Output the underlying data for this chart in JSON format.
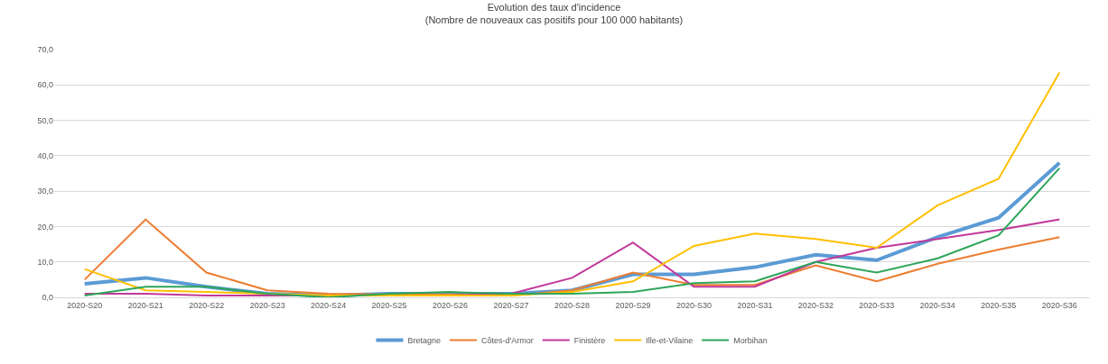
{
  "chart_data": {
    "type": "line",
    "title": "Evolution des taux d'incidence\n(Nombre de nouveaux cas positifs pour 100 000 habitants)",
    "categories": [
      "2020-S20",
      "2020-S21",
      "2020-S22",
      "2020-S23",
      "2020-S24",
      "2020-S25",
      "2020-S26",
      "2020-S27",
      "2020-S28",
      "2020-S29",
      "2020-S30",
      "2020-S31",
      "2020-S32",
      "2020-S33",
      "2020-S34",
      "2020-S35",
      "2020-S36"
    ],
    "series": [
      {
        "name": "Bretagne",
        "color": "#5b9bd5",
        "values": [
          3.8,
          5.5,
          3,
          1,
          0.5,
          1,
          1,
          1,
          2,
          6.5,
          6.5,
          8.5,
          12,
          10.5,
          17,
          22.5,
          38
        ]
      },
      {
        "name": "Côtes-d'Armor",
        "color": "#ed7d31",
        "values": [
          5,
          22,
          7,
          2,
          1,
          0.8,
          0.8,
          0.5,
          2,
          7,
          3.5,
          3.5,
          9,
          4.5,
          9.5,
          13.5,
          17
        ]
      },
      {
        "name": "Finistère",
        "color": "#c2389a",
        "values": [
          1,
          1,
          0.5,
          0.5,
          0.5,
          0.5,
          0.5,
          1,
          5.5,
          15.5,
          3,
          3,
          10,
          14,
          16.5,
          19,
          22
        ]
      },
      {
        "name": "Ille-et-Vilaine",
        "color": "#ffc000",
        "values": [
          8,
          2,
          1.5,
          1,
          0.5,
          0.5,
          0.5,
          0.5,
          1.5,
          4.5,
          14.5,
          18,
          16.5,
          14,
          26,
          33.5,
          63.5
        ]
      },
      {
        "name": "Morbihan",
        "color": "#2ea55a",
        "values": [
          0.5,
          3,
          3,
          1,
          0,
          1,
          1.5,
          1,
          1,
          1.5,
          4,
          4.5,
          10,
          7,
          11,
          17.5,
          36.5
        ]
      }
    ],
    "ylim": [
      0,
      70
    ],
    "yticks": [
      {
        "value": 0,
        "label": "0,0"
      },
      {
        "value": 10,
        "label": "10,0"
      },
      {
        "value": 20,
        "label": "20,0"
      },
      {
        "value": 30,
        "label": "30,0"
      },
      {
        "value": 40,
        "label": "40,0"
      },
      {
        "value": 50,
        "label": "50,0"
      },
      {
        "value": 60,
        "label": "60,0"
      },
      {
        "value": 70,
        "label": "70,0"
      }
    ],
    "grid": "y",
    "legend": "bottom",
    "marker": "none",
    "line_style": "solid"
  }
}
